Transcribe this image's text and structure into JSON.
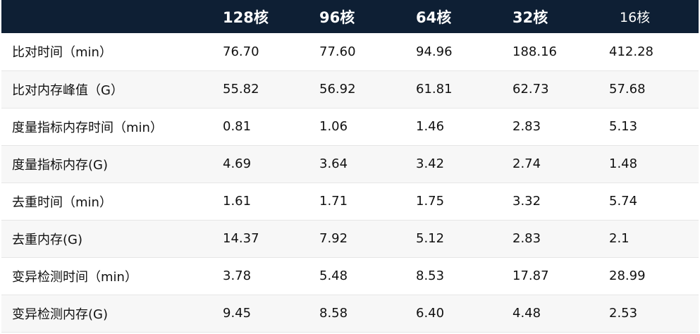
{
  "table": {
    "headers": [
      "",
      "128核",
      "96核",
      "64核",
      "32核",
      "16核"
    ],
    "rows": [
      {
        "label": "比对时间（min）",
        "values": [
          "76.70",
          "77.60",
          "94.96",
          "188.16",
          "412.28"
        ]
      },
      {
        "label": "比对内存峰值（G）",
        "values": [
          "55.82",
          "56.92",
          "61.81",
          "62.73",
          "57.68"
        ]
      },
      {
        "label": "度量指标内存时间（min）",
        "values": [
          "0.81",
          "1.06",
          "1.46",
          "2.83",
          "5.13"
        ]
      },
      {
        "label": "度量指标内存(G)",
        "values": [
          "4.69",
          "3.64",
          "3.42",
          "2.74",
          "1.48"
        ]
      },
      {
        "label": "去重时间（min）",
        "values": [
          "1.61",
          "1.71",
          "1.75",
          "3.32",
          "5.74"
        ]
      },
      {
        "label": "去重内存(G)",
        "values": [
          "14.37",
          "7.92",
          "5.12",
          "2.83",
          "2.1"
        ]
      },
      {
        "label": "变异检测时间（min）",
        "values": [
          "3.78",
          "5.48",
          "8.53",
          "17.87",
          "28.99"
        ]
      },
      {
        "label": "变异检测内存(G)",
        "values": [
          "9.45",
          "8.58",
          "6.40",
          "4.48",
          "2.53"
        ]
      }
    ]
  },
  "colors": {
    "header_bg": "#0e1f34",
    "header_text": "#ffffff",
    "row_alt_bg": "#f7f7f7"
  }
}
